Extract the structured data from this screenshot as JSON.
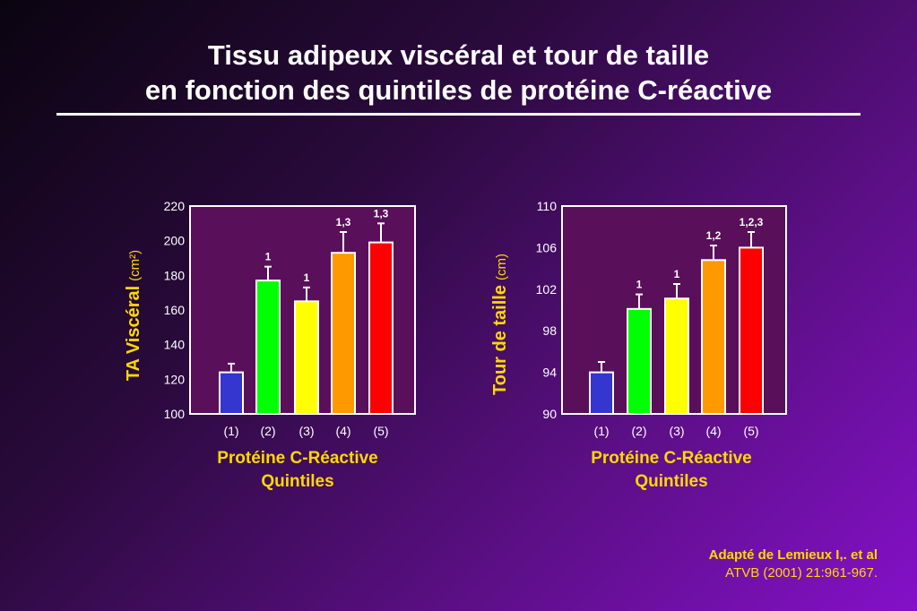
{
  "title": {
    "line1": "Tissu adipeux viscéral et tour de taille",
    "line2": "en fonction des quintiles de protéine C-réactive"
  },
  "source": {
    "line1": "Adapté de Lemieux I,. et al",
    "line2": "ATVB (2001) 21:961-967."
  },
  "colors": {
    "background": "#3a0c58",
    "plot_area": "#5a0f5a",
    "text_accent": "#ffd800",
    "bars": [
      "#3535d0",
      "#00ff00",
      "#ffff00",
      "#ff9900",
      "#ff0000"
    ]
  },
  "chart_data": [
    {
      "type": "bar",
      "categories": [
        "(1)",
        "(2)",
        "(3)",
        "(4)",
        "(5)"
      ],
      "values": [
        124,
        177,
        165,
        193,
        199
      ],
      "errors": [
        5,
        8,
        8,
        12,
        11
      ],
      "annotations": [
        "",
        "1",
        "1",
        "1,3",
        "1,3"
      ],
      "ylim": [
        100,
        220
      ],
      "yticks": [
        100,
        120,
        140,
        160,
        180,
        200,
        220
      ],
      "ylabel": "TA Viscéral",
      "ylabel_unit": "(cm²)",
      "xlabel_line1": "Protéine C-Réactive",
      "xlabel_line2": "Quintiles",
      "grid": false,
      "legend": "none"
    },
    {
      "type": "bar",
      "categories": [
        "(1)",
        "(2)",
        "(3)",
        "(4)",
        "(5)"
      ],
      "values": [
        94,
        100.1,
        101.1,
        104.8,
        106
      ],
      "errors": [
        1,
        1.4,
        1.4,
        1.4,
        1.5
      ],
      "annotations": [
        "",
        "1",
        "1",
        "1,2",
        "1,2,3"
      ],
      "ylim": [
        90,
        110
      ],
      "yticks": [
        90,
        94,
        98,
        102,
        106,
        110
      ],
      "ylabel": "Tour de taille",
      "ylabel_unit": "(cm)",
      "xlabel_line1": "Protéine C-Réactive",
      "xlabel_line2": "Quintiles",
      "grid": false,
      "legend": "none"
    }
  ]
}
